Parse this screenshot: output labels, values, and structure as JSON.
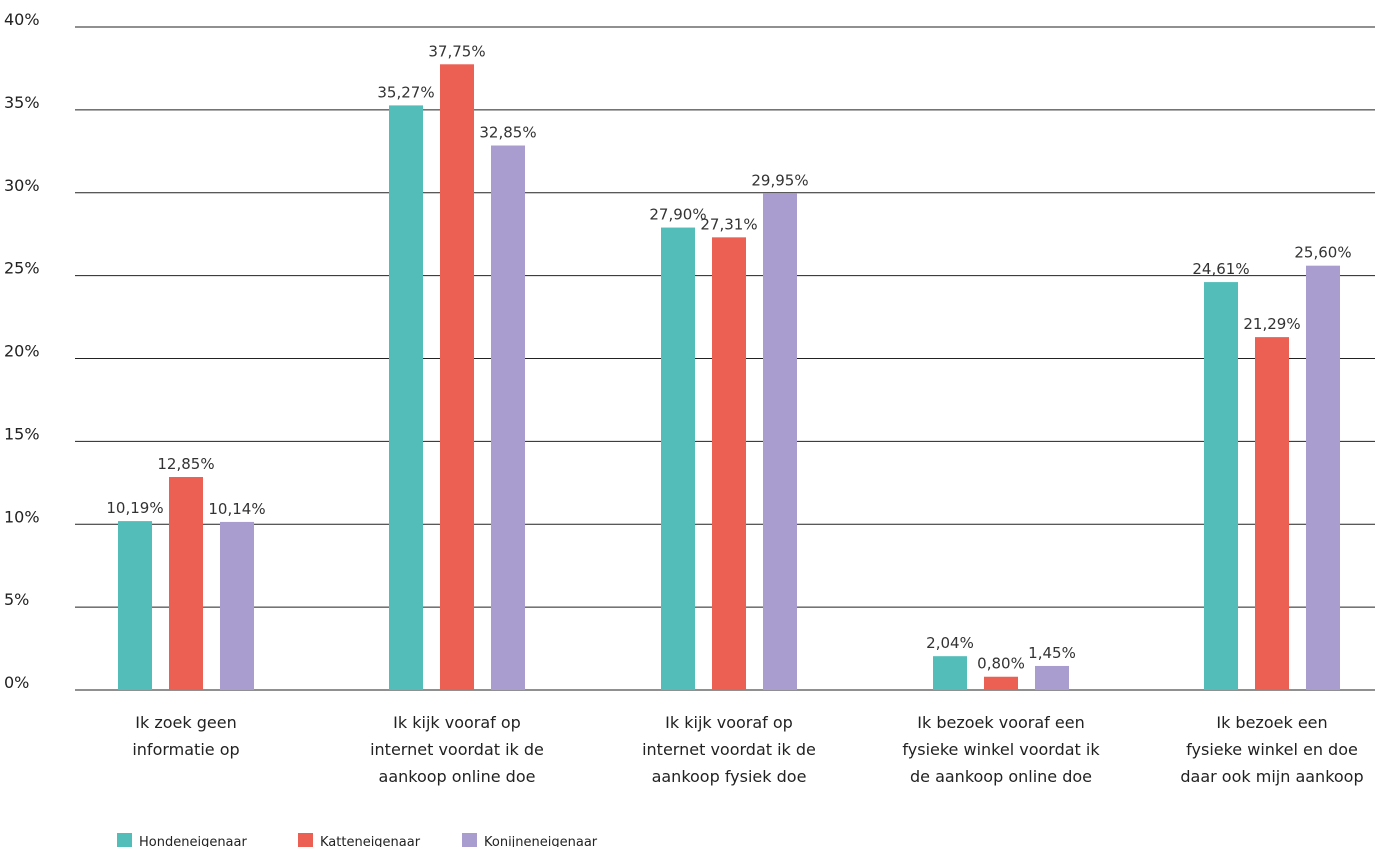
{
  "chart_data": {
    "type": "bar",
    "title": "",
    "xlabel": "",
    "ylabel": "",
    "ylim": [
      0,
      40
    ],
    "yticks": [
      0,
      5,
      10,
      15,
      20,
      25,
      30,
      35,
      40
    ],
    "ytick_labels": [
      "0%",
      "5%",
      "10%",
      "15%",
      "20%",
      "25%",
      "30%",
      "35%",
      "40%"
    ],
    "grid": true,
    "legend_position": "bottom-left",
    "categories": [
      [
        "Ik zoek geen",
        "informatie op"
      ],
      [
        "Ik kijk vooraf op",
        "internet voordat ik de",
        "aankoop online doe"
      ],
      [
        "Ik kijk vooraf op",
        "internet voordat ik de",
        "aankoop fysiek doe"
      ],
      [
        "Ik bezoek vooraf een",
        "fysieke winkel voordat ik",
        "de aankoop online doe"
      ],
      [
        "Ik bezoek een",
        "fysieke winkel en doe",
        "daar ook mijn aankoop"
      ]
    ],
    "series": [
      {
        "name": "Hondeneigenaar",
        "color": "#52bdb9",
        "values": [
          10.19,
          35.27,
          27.9,
          2.04,
          24.61
        ],
        "labels": [
          "10,19%",
          "35,27%",
          "27,90%",
          "2,04%",
          "24,61%"
        ]
      },
      {
        "name": "Katteneigenaar",
        "color": "#ec6054",
        "values": [
          12.85,
          37.75,
          27.31,
          0.8,
          21.29
        ],
        "labels": [
          "12,85%",
          "37,75%",
          "27,31%",
          "0,80%",
          "21,29%"
        ]
      },
      {
        "name": "Konijneneigenaar",
        "color": "#a99ccf",
        "values": [
          10.14,
          32.85,
          29.95,
          1.45,
          25.6
        ],
        "labels": [
          "10,14%",
          "32,85%",
          "29,95%",
          "1,45%",
          "25,60%"
        ]
      }
    ]
  }
}
